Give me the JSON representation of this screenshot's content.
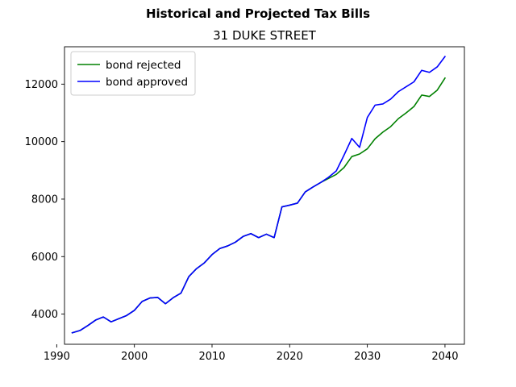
{
  "chart_data": {
    "type": "line",
    "suptitle": "Historical and Projected Tax Bills",
    "title": "31 DUKE STREET",
    "xlabel": "",
    "ylabel": "",
    "xlim": [
      1991,
      2042.5
    ],
    "ylim": [
      2950,
      13300
    ],
    "xticks": [
      1990,
      2000,
      2010,
      2020,
      2030,
      2040
    ],
    "yticks": [
      4000,
      6000,
      8000,
      10000,
      12000
    ],
    "legend_position": "upper-left",
    "grid": false,
    "series": [
      {
        "name": "bond rejected",
        "color": "#008000",
        "x": [
          1992,
          1993,
          1994,
          1995,
          1996,
          1997,
          1998,
          1999,
          2000,
          2001,
          2002,
          2003,
          2004,
          2005,
          2006,
          2007,
          2008,
          2009,
          2010,
          2011,
          2012,
          2013,
          2014,
          2015,
          2016,
          2017,
          2018,
          2019,
          2020,
          2021,
          2022,
          2023,
          2024,
          2025,
          2026,
          2027,
          2028,
          2029,
          2030,
          2031,
          2032,
          2033,
          2034,
          2035,
          2036,
          2037,
          2038,
          2039,
          2040
        ],
        "y": [
          3350,
          3430,
          3600,
          3790,
          3900,
          3730,
          3840,
          3950,
          4130,
          4440,
          4560,
          4580,
          4360,
          4570,
          4730,
          5300,
          5580,
          5780,
          6070,
          6280,
          6370,
          6500,
          6700,
          6800,
          6660,
          6780,
          6660,
          7730,
          7790,
          7860,
          8250,
          8420,
          8580,
          8720,
          8860,
          9100,
          9480,
          9570,
          9750,
          10100,
          10330,
          10520,
          10800,
          11000,
          11220,
          11620,
          11570,
          11790,
          12210
        ]
      },
      {
        "name": "bond approved",
        "color": "#0000ff",
        "x": [
          1992,
          1993,
          1994,
          1995,
          1996,
          1997,
          1998,
          1999,
          2000,
          2001,
          2002,
          2003,
          2004,
          2005,
          2006,
          2007,
          2008,
          2009,
          2010,
          2011,
          2012,
          2013,
          2014,
          2015,
          2016,
          2017,
          2018,
          2019,
          2020,
          2021,
          2022,
          2023,
          2024,
          2025,
          2026,
          2027,
          2028,
          2029,
          2030,
          2031,
          2032,
          2033,
          2034,
          2035,
          2036,
          2037,
          2038,
          2039,
          2040
        ],
        "y": [
          3350,
          3430,
          3600,
          3790,
          3900,
          3730,
          3840,
          3950,
          4130,
          4440,
          4560,
          4580,
          4360,
          4570,
          4730,
          5300,
          5580,
          5780,
          6070,
          6280,
          6370,
          6500,
          6700,
          6800,
          6660,
          6780,
          6660,
          7730,
          7790,
          7860,
          8250,
          8420,
          8580,
          8760,
          8980,
          9530,
          10110,
          9800,
          10840,
          11270,
          11310,
          11480,
          11740,
          11910,
          12080,
          12480,
          12410,
          12600,
          12960
        ]
      }
    ]
  }
}
